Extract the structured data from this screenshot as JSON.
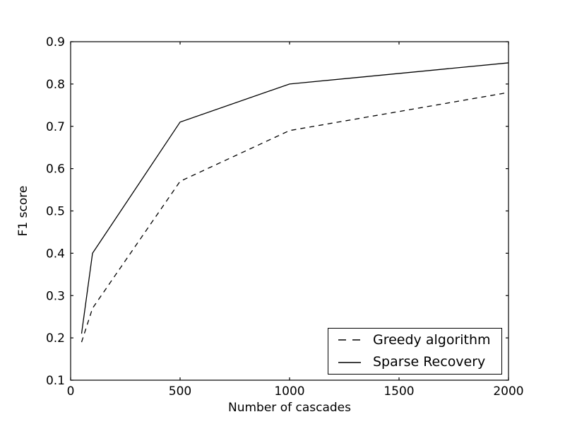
{
  "figure": {
    "background": "#ffffff",
    "foreground": "#000000"
  },
  "chart_data": {
    "type": "line",
    "title": "",
    "xlabel": "Number of cascades",
    "ylabel": "F1 score",
    "xlim": [
      0,
      2000
    ],
    "ylim": [
      0.1,
      0.9
    ],
    "x_ticks": [
      0,
      500,
      1000,
      1500,
      2000
    ],
    "x_tick_labels": [
      "0",
      "500",
      "1000",
      "1500",
      "2000"
    ],
    "y_ticks": [
      0.1,
      0.2,
      0.3,
      0.4,
      0.5,
      0.6,
      0.7,
      0.8,
      0.9
    ],
    "y_tick_labels": [
      "0.1",
      "0.2",
      "0.3",
      "0.4",
      "0.5",
      "0.6",
      "0.7",
      "0.8",
      "0.9"
    ],
    "grid": false,
    "legend": {
      "position": "lower right",
      "border": true
    },
    "series": [
      {
        "name": "Greedy algorithm",
        "linestyle": "dashed",
        "color": "#000000",
        "x": [
          50,
          100,
          500,
          1000,
          2000
        ],
        "y": [
          0.19,
          0.27,
          0.57,
          0.69,
          0.78
        ]
      },
      {
        "name": "Sparse Recovery",
        "linestyle": "solid",
        "color": "#000000",
        "x": [
          50,
          100,
          500,
          1000,
          2000
        ],
        "y": [
          0.21,
          0.4,
          0.71,
          0.8,
          0.85
        ]
      }
    ]
  }
}
